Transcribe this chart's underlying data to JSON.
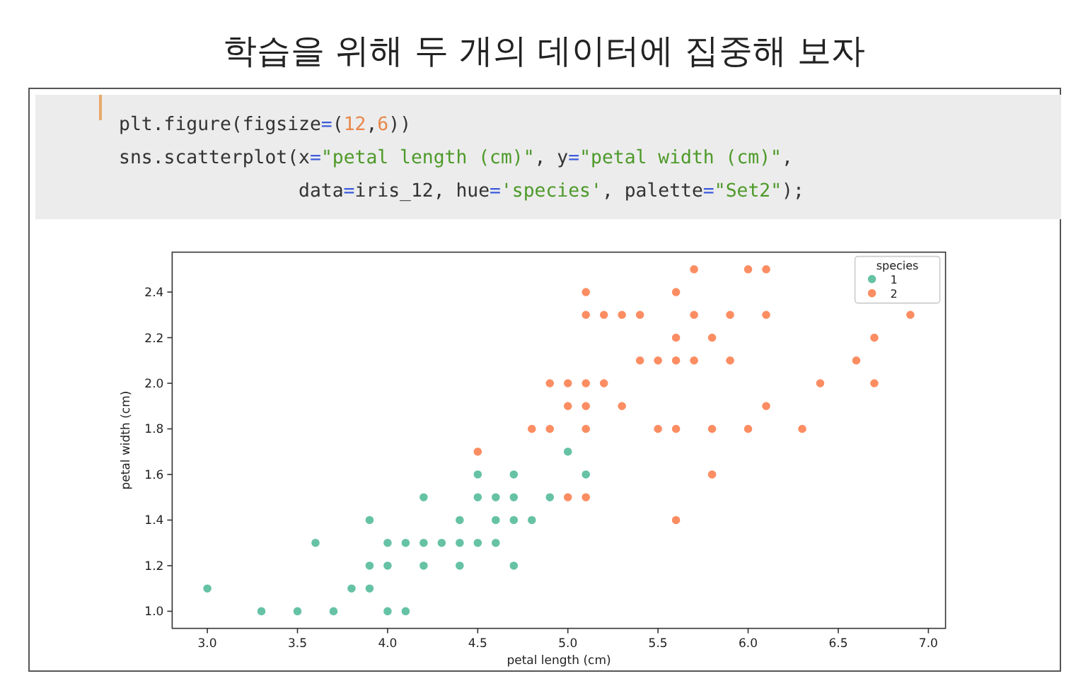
{
  "chart_data": {
    "type": "scatter",
    "title": "학습을 위해 두 개의 데이터에 집중해 보자",
    "annotations": [
      "plt.figure(figsize=(12,6))",
      "sns.scatterplot(x=\"petal length (cm)\", y=\"petal width (cm)\",",
      "                data=iris_12, hue='species', palette=\"Set2\");"
    ],
    "xlabel": "petal length (cm)",
    "ylabel": "petal width (cm)",
    "legend_title": "species",
    "legend": "top right",
    "grid": false,
    "marker": "circle",
    "xlim": [
      2.805,
      7.095
    ],
    "xticks": [
      {
        "value": 3,
        "label": "3.0"
      },
      3.5,
      {
        "value": 4,
        "label": "4.0"
      },
      4.5,
      {
        "value": 5,
        "label": "5.0"
      },
      5.5,
      {
        "value": 6,
        "label": "6.0"
      },
      6.5,
      {
        "value": 7,
        "label": "7.0"
      }
    ],
    "ylim": [
      0.925,
      2.575
    ],
    "yticks": [
      {
        "value": 1,
        "label": "1.0"
      },
      1.2,
      1.4,
      1.6,
      1.8,
      {
        "value": 2,
        "label": "2.0"
      },
      2.2,
      2.4
    ],
    "series": [
      {
        "name": "1",
        "color": "#66c2a5",
        "x": [
          3.0,
          3.3,
          3.5,
          3.7,
          3.6,
          3.8,
          3.9,
          3.9,
          3.9,
          4.0,
          4.1,
          4.0,
          4.0,
          4.1,
          4.2,
          4.2,
          4.2,
          4.3,
          4.4,
          4.4,
          4.4,
          4.5,
          4.5,
          4.5,
          4.6,
          4.6,
          4.6,
          4.7,
          4.7,
          4.7,
          4.7,
          4.8,
          4.9,
          5.0,
          5.1
        ],
        "values": [
          1.1,
          1.0,
          1.0,
          1.0,
          1.3,
          1.1,
          1.1,
          1.2,
          1.4,
          1.0,
          1.0,
          1.2,
          1.3,
          1.3,
          1.3,
          1.2,
          1.5,
          1.3,
          1.3,
          1.2,
          1.4,
          1.3,
          1.5,
          1.6,
          1.3,
          1.4,
          1.5,
          1.2,
          1.4,
          1.5,
          1.6,
          1.4,
          1.5,
          1.7,
          1.6
        ]
      },
      {
        "name": "2",
        "color": "#fc8d62",
        "x": [
          5.7,
          6.0,
          6.1,
          5.1,
          5.6,
          5.1,
          5.2,
          5.3,
          5.4,
          5.7,
          5.9,
          6.1,
          6.9,
          5.6,
          5.8,
          6.7,
          5.4,
          5.5,
          5.6,
          5.7,
          5.9,
          6.6,
          4.9,
          5.0,
          5.1,
          5.2,
          6.4,
          6.7,
          5.0,
          5.1,
          5.3,
          6.1,
          4.8,
          4.9,
          5.1,
          5.5,
          5.6,
          5.8,
          6.0,
          6.3,
          4.5,
          5.8,
          5.0,
          5.1,
          5.6
        ],
        "values": [
          2.5,
          2.5,
          2.5,
          2.4,
          2.4,
          2.3,
          2.3,
          2.3,
          2.3,
          2.3,
          2.3,
          2.3,
          2.3,
          2.2,
          2.2,
          2.2,
          2.1,
          2.1,
          2.1,
          2.1,
          2.1,
          2.1,
          2.0,
          2.0,
          2.0,
          2.0,
          2.0,
          2.0,
          1.9,
          1.9,
          1.9,
          1.9,
          1.8,
          1.8,
          1.8,
          1.8,
          1.8,
          1.8,
          1.8,
          1.8,
          1.7,
          1.6,
          1.5,
          1.5,
          1.4
        ]
      }
    ]
  }
}
